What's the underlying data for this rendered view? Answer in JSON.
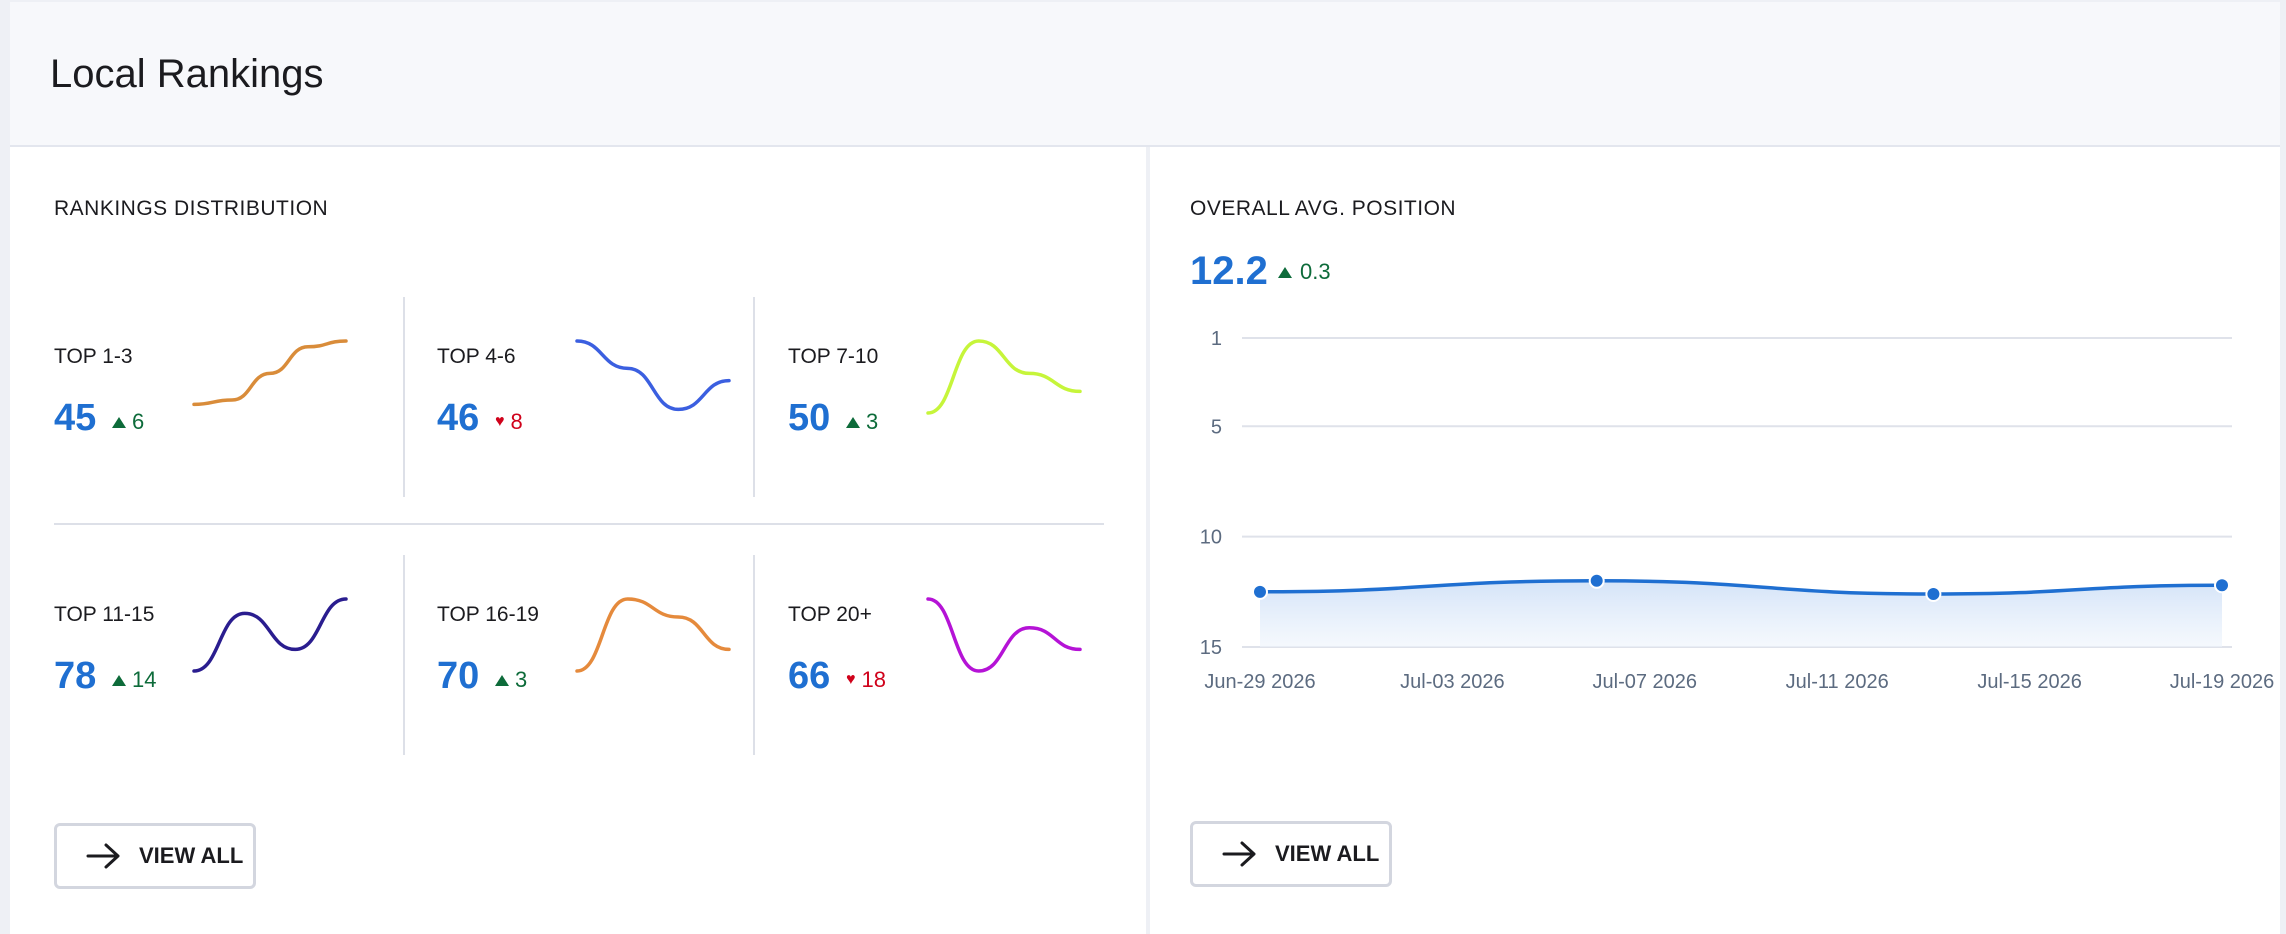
{
  "header": {
    "title": "Local Rankings"
  },
  "distribution": {
    "title": "RANKINGS DISTRIBUTION",
    "items": [
      {
        "label": "TOP 1-3",
        "value": "45",
        "delta": "6",
        "direction": "up",
        "color": "#d98c3a",
        "trend": [
          0.12,
          0.18,
          0.55,
          0.92,
          1.0
        ]
      },
      {
        "label": "TOP 4-6",
        "value": "46",
        "delta": "8",
        "direction": "down",
        "color": "#3b5fe0",
        "trend": [
          1.0,
          0.62,
          0.05,
          0.45
        ]
      },
      {
        "label": "TOP 7-10",
        "value": "50",
        "delta": "3",
        "direction": "up",
        "color": "#c6f53a",
        "trend": [
          0.0,
          1.0,
          0.55,
          0.3
        ]
      },
      {
        "label": "TOP 11-15",
        "value": "78",
        "delta": "14",
        "direction": "up",
        "color": "#2a1d8f",
        "trend": [
          0.0,
          0.8,
          0.3,
          1.0
        ]
      },
      {
        "label": "TOP 16-19",
        "value": "70",
        "delta": "3",
        "direction": "up",
        "color": "#e58a3c",
        "trend": [
          0.0,
          1.0,
          0.75,
          0.3
        ]
      },
      {
        "label": "TOP 20+",
        "value": "66",
        "delta": "18",
        "direction": "down",
        "color": "#b513d6",
        "trend": [
          1.0,
          0.0,
          0.6,
          0.3
        ]
      }
    ],
    "view_all": "VIEW ALL"
  },
  "avg_position": {
    "title": "OVERALL AVG. POSITION",
    "value": "12.2",
    "delta": "0.3",
    "direction": "up",
    "view_all": "VIEW ALL",
    "chart_data": {
      "type": "line",
      "x_ticks": [
        "Jun-29 2026",
        "Jul-03 2026",
        "Jul-07 2026",
        "Jul-11 2026",
        "Jul-15 2026",
        "Jul-19 2026"
      ],
      "y_ticks": [
        1,
        5,
        10,
        15
      ],
      "ylim": [
        1,
        15
      ],
      "y_inverted": true,
      "series": [
        {
          "x": [
            "Jun-29 2026",
            "Jul-06 2026",
            "Jul-13 2026",
            "Jul-19 2026"
          ],
          "values": [
            12.5,
            12.0,
            12.6,
            12.2
          ]
        }
      ],
      "line_color": "#1f6fd1",
      "grid": true
    }
  }
}
